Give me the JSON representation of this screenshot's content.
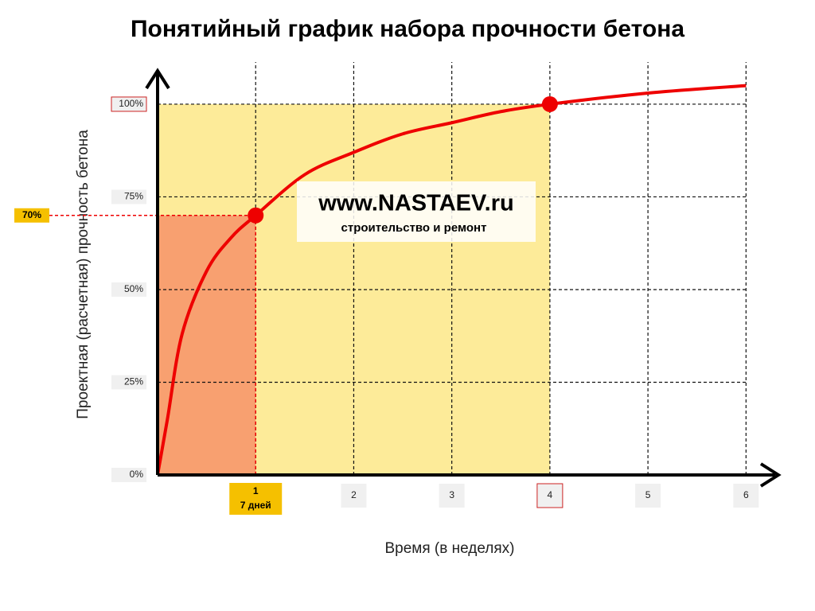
{
  "chart_data": {
    "type": "line",
    "title": "Понятийный график набора прочности бетона",
    "x_label": "Время (в неделях)",
    "y_label": "Проектная (расчетная) прочность бетона",
    "x": [
      0,
      0.1,
      0.25,
      0.5,
      0.75,
      1,
      1.5,
      2,
      2.5,
      3,
      3.5,
      4,
      5,
      6
    ],
    "values": [
      0,
      15,
      38,
      55,
      64,
      70,
      81,
      87,
      92,
      95,
      98,
      100,
      103,
      105
    ],
    "color": "#ee0000",
    "xlim": [
      0,
      6.33
    ],
    "ylim": [
      0,
      109
    ],
    "xticks": [
      1,
      2,
      3,
      4,
      5,
      6
    ],
    "yticks": [
      {
        "value": 0,
        "label": "0%"
      },
      {
        "value": 25,
        "label": "25%"
      },
      {
        "value": 50,
        "label": "50%"
      },
      {
        "value": 75,
        "label": "75%"
      },
      {
        "value": 100,
        "label": "100%"
      }
    ],
    "grid": true,
    "highlights": [
      {
        "x": 1,
        "y": 70,
        "label": "70%",
        "note": "7 дней",
        "color": "#f5c000",
        "fill": "#f8a070"
      },
      {
        "x": 4,
        "y": 100,
        "color": "#cc2222",
        "fill": "#fdeb99"
      }
    ],
    "watermark": {
      "title": "www.NASTAEV.ru",
      "subtitle": "строительство и ремонт"
    }
  }
}
